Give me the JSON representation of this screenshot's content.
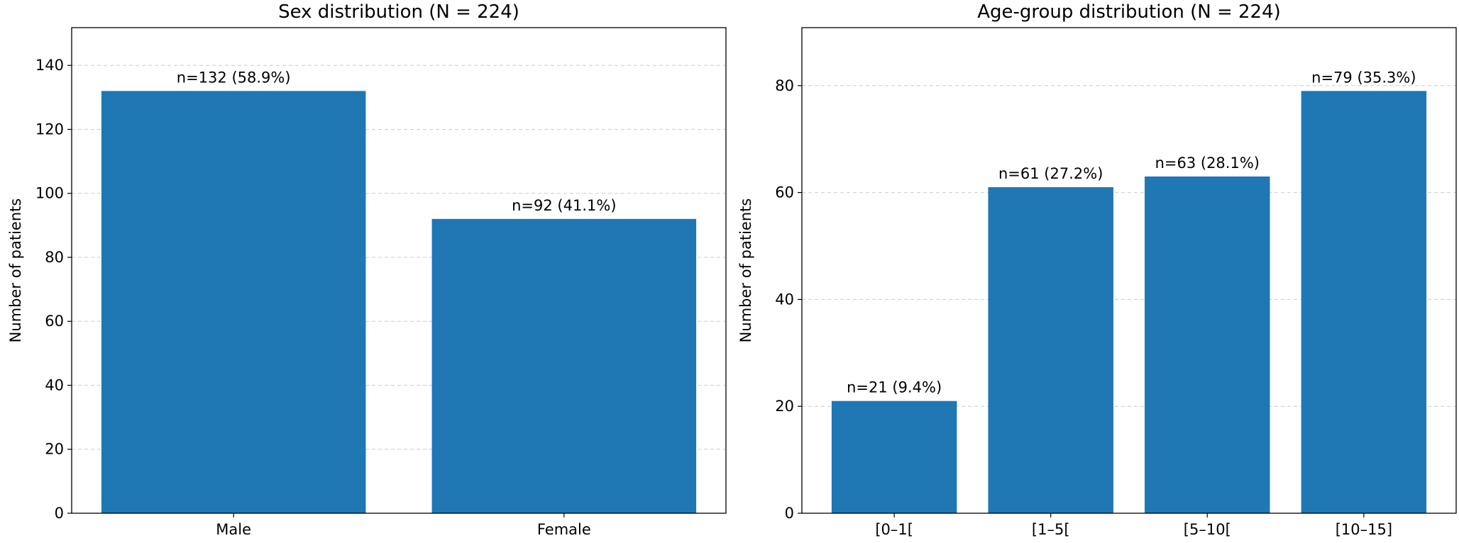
{
  "chart_data": [
    {
      "type": "bar",
      "title": "Sex distribution (N = 224)",
      "ylabel": "Number of patients",
      "categories": [
        "Male",
        "Female"
      ],
      "values": [
        132,
        92
      ],
      "value_labels": [
        "n=132 (58.9%)",
        "n=92 (41.1%)"
      ],
      "color": "#1f77b4",
      "ylim": [
        0,
        151.8
      ],
      "yticks": [
        0,
        20,
        40,
        60,
        80,
        100,
        120,
        140
      ],
      "grid": true
    },
    {
      "type": "bar",
      "title": "Age-group distribution (N = 224)",
      "ylabel": "Number of patients",
      "categories": [
        "[0–1[",
        "[1–5[",
        "[5–10[",
        "[10–15]"
      ],
      "values": [
        21,
        61,
        63,
        79
      ],
      "value_labels": [
        "n=21 (9.4%)",
        "n=61 (27.2%)",
        "n=63 (28.1%)",
        "n=79 (35.3%)"
      ],
      "color": "#1f77b4",
      "ylim": [
        0,
        90.85
      ],
      "yticks": [
        0,
        20,
        40,
        60,
        80
      ],
      "grid": true
    }
  ]
}
